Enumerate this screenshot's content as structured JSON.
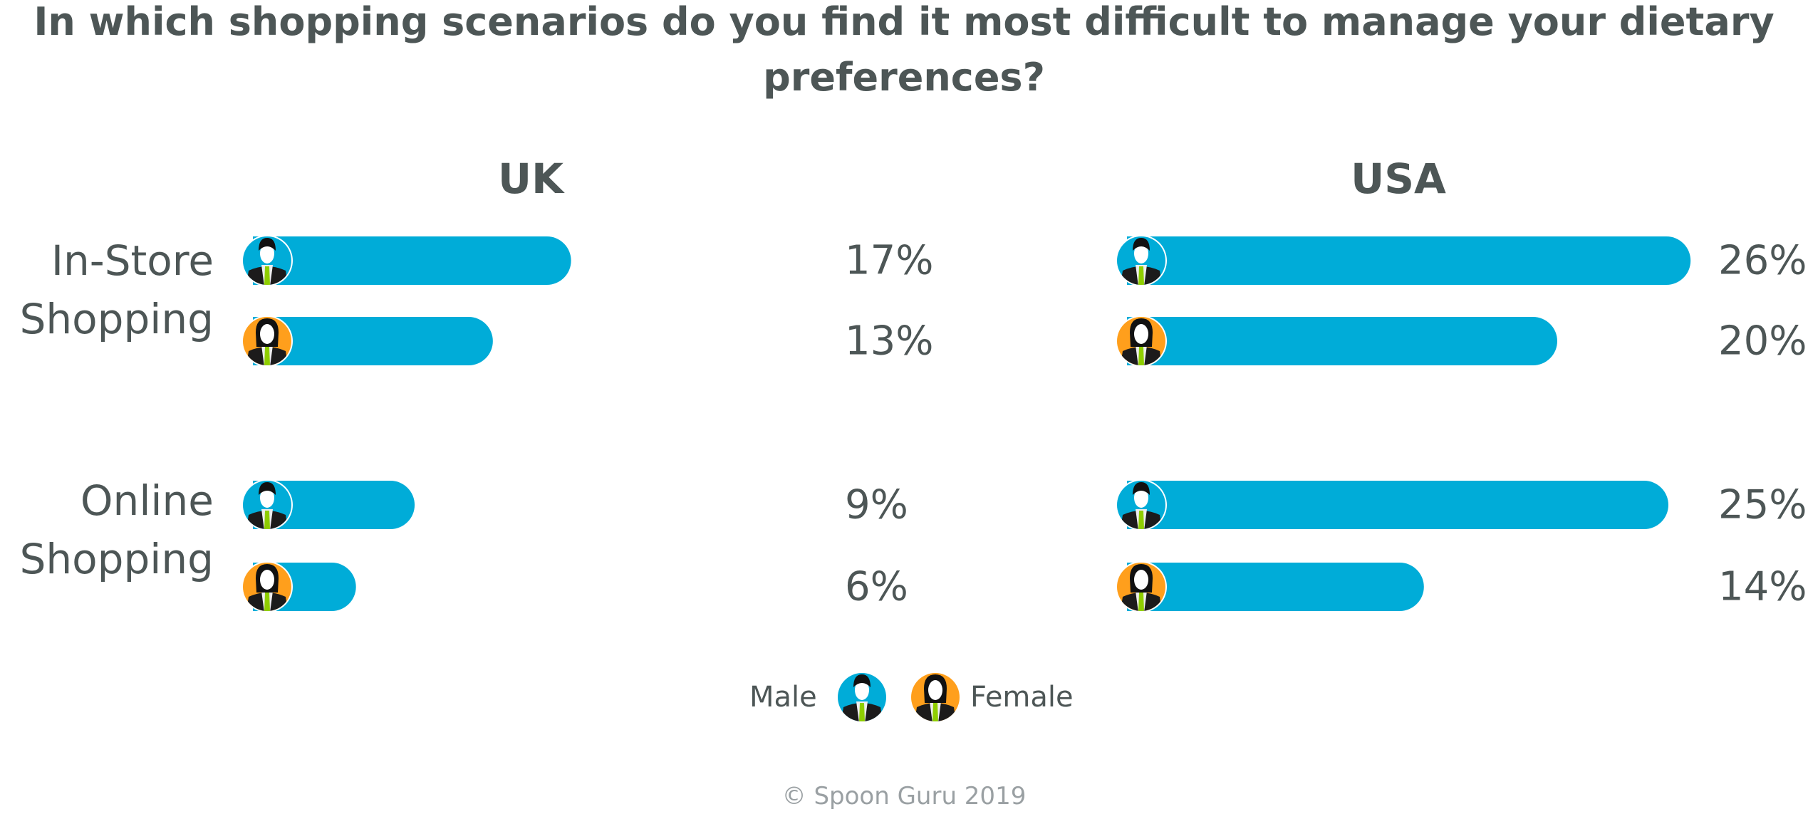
{
  "title_lines": [
    "In which shopping scenarios do you find it most difficult to manage your dietary",
    "preferences?"
  ],
  "colors": {
    "bar": "#00acd8",
    "male_icon_bg": "#00acd8",
    "female_icon_bg": "#ff9f1c",
    "text": "#4d5656",
    "tie": "#8fce00"
  },
  "chart_data": [
    {
      "type": "bar",
      "orientation": "horizontal",
      "title": "UK",
      "categories": [
        "In-Store Shopping",
        "Online Shopping"
      ],
      "series": [
        {
          "name": "Male",
          "values": [
            17,
            9
          ],
          "labels": [
            "17%",
            "9%"
          ]
        },
        {
          "name": "Female",
          "values": [
            13,
            6
          ],
          "labels": [
            "13%",
            "6%"
          ]
        }
      ]
    },
    {
      "type": "bar",
      "orientation": "horizontal",
      "title": "USA",
      "categories": [
        "In-Store Shopping",
        "Online Shopping"
      ],
      "series": [
        {
          "name": "Male",
          "values": [
            26,
            25
          ],
          "labels": [
            "26%",
            "25%"
          ]
        },
        {
          "name": "Female",
          "values": [
            20,
            14
          ],
          "labels": [
            "20%",
            "14%"
          ]
        }
      ]
    }
  ],
  "category_labels": [
    [
      "In-Store",
      "Shopping"
    ],
    [
      "Online",
      "Shopping"
    ]
  ],
  "legend": {
    "position": "bottom",
    "items": [
      {
        "label": "Male",
        "icon": "male-avatar-icon"
      },
      {
        "label": "Female",
        "icon": "female-avatar-icon"
      }
    ]
  },
  "copyright": "© Spoon Guru 2019"
}
